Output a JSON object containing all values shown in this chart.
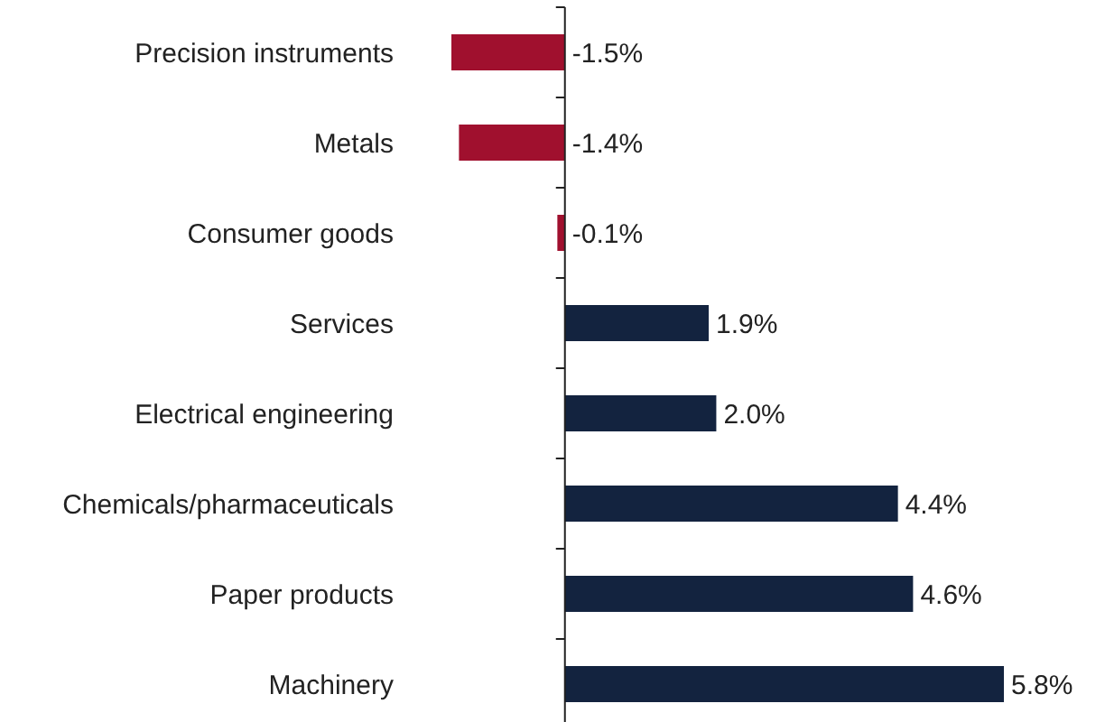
{
  "chart_data": {
    "type": "bar",
    "orientation": "horizontal",
    "categories": [
      "Precision instruments",
      "Metals",
      "Consumer goods",
      "Services",
      "Electrical engineering",
      "Chemicals/pharmaceuticals",
      "Paper products",
      "Machinery"
    ],
    "values": [
      -1.5,
      -1.4,
      -0.1,
      1.9,
      2.0,
      4.4,
      4.6,
      5.8
    ],
    "colors": [
      "#a0102e",
      "#a0102e",
      "#a0102e",
      "#13233f",
      "#13233f",
      "#13233f",
      "#13233f",
      "#13233f"
    ],
    "value_labels": [
      "-1.5%",
      "-1.4%",
      "-0.1%",
      "1.9%",
      "2.0%",
      "4.4%",
      "4.6%",
      "5.8%"
    ]
  }
}
